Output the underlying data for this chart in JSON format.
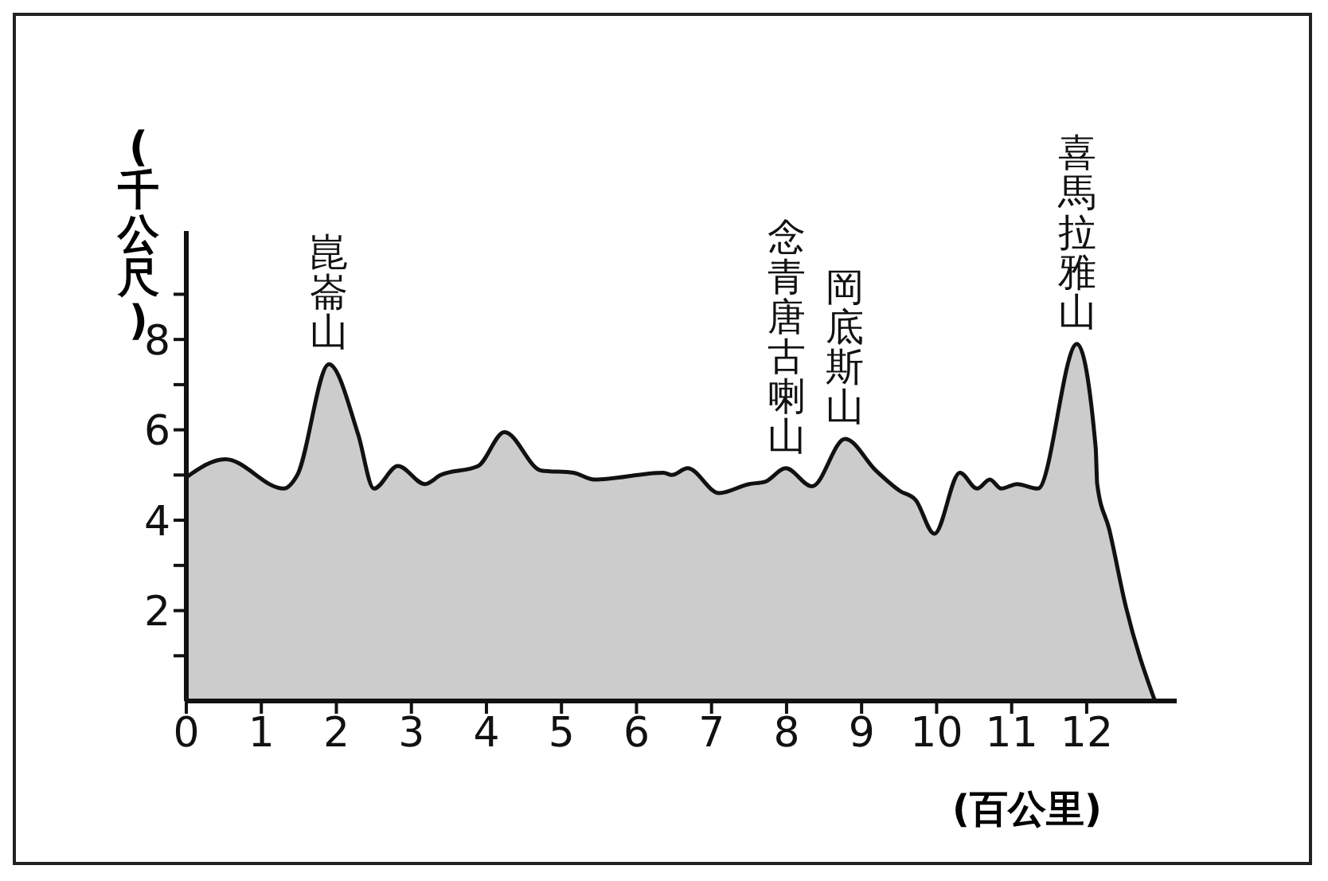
{
  "chart_data": {
    "type": "area",
    "xlabel": "(百公里)",
    "ylabel": "(千公尺)",
    "x": [
      0,
      0.52,
      1.3,
      1.48,
      1.9,
      2.29,
      2.5,
      2.82,
      3.18,
      3.39,
      3.89,
      4.24,
      4.73,
      5.16,
      5.44,
      6.36,
      6.47,
      6.68,
      7.1,
      7.5,
      7.71,
      7.99,
      8.34,
      8.78,
      9.19,
      9.51,
      9.72,
      9.97,
      10.31,
      10.54,
      10.71,
      10.86,
      11.07,
      11.35,
      11.87,
      12.12,
      12.14,
      12.3,
      12.52,
      12.91
    ],
    "series": [
      {
        "color": "#cccccc",
        "values": [
          4.95,
          5.35,
          4.7,
          5.0,
          7.45,
          5.9,
          4.7,
          5.2,
          4.8,
          5.0,
          5.2,
          5.95,
          5.1,
          5.05,
          4.9,
          5.05,
          5.0,
          5.15,
          4.6,
          4.8,
          4.85,
          5.15,
          4.75,
          5.8,
          5.1,
          4.65,
          4.45,
          3.7,
          5.05,
          4.7,
          4.9,
          4.7,
          4.8,
          4.7,
          7.9,
          5.6,
          4.8,
          3.8,
          2.1,
          0
        ]
      }
    ],
    "xlim": [
      0,
      13.2
    ],
    "xticks": [
      0,
      1,
      2,
      3,
      4,
      5,
      6,
      7,
      8,
      9,
      10,
      11,
      12
    ],
    "ylim": [
      0,
      10.4
    ],
    "yticks": [
      {
        "value": 1,
        "label": null
      },
      2,
      {
        "value": 3,
        "label": null
      },
      4,
      {
        "value": 5,
        "label": null
      },
      6,
      {
        "value": 7,
        "label": null
      },
      8,
      {
        "value": 9,
        "label": null
      }
    ],
    "grid": false,
    "legend": false,
    "annotations": [
      {
        "text": "崑崙山",
        "x": 1.9,
        "y": 7.45
      },
      {
        "text": "念青唐古喇山",
        "x": 8.0,
        "y": 5.15
      },
      {
        "text": "岡底斯山",
        "x": 8.78,
        "y": 5.8
      },
      {
        "text": "喜馬拉雅山",
        "x": 11.87,
        "y": 7.9
      }
    ]
  }
}
